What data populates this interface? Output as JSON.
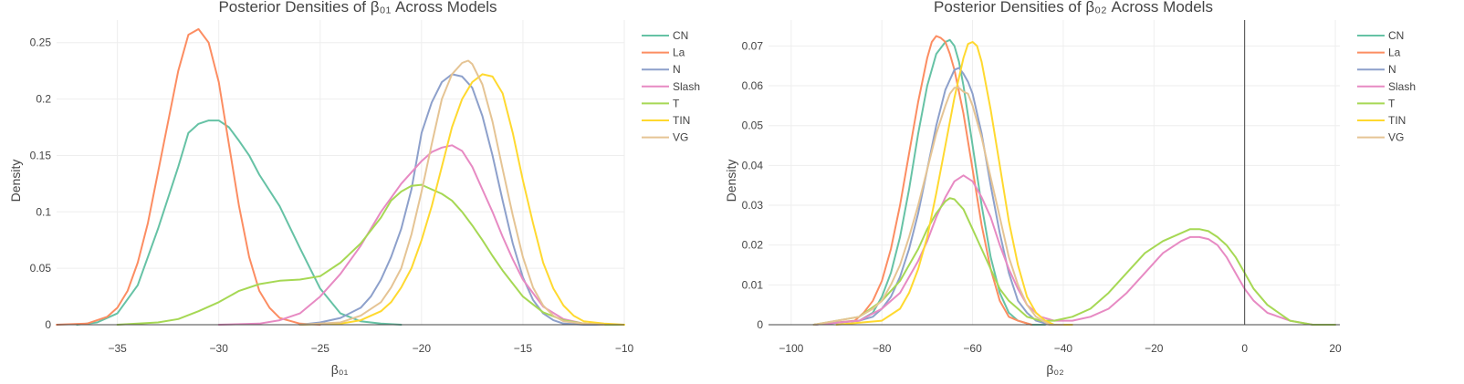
{
  "chart_data": [
    {
      "type": "line",
      "title": "Posterior Densities of β₀₁ Across Models",
      "xlabel": "β₀₁",
      "ylabel": "Density",
      "xlim": [
        -38,
        -10
      ],
      "ylim": [
        0,
        0.27
      ],
      "xticks": [
        -35,
        -30,
        -25,
        -20,
        -15,
        -10
      ],
      "xtick_labels": [
        "−35",
        "−30",
        "−25",
        "−20",
        "−15",
        "−10"
      ],
      "yticks": [
        0,
        0.05,
        0.1,
        0.15,
        0.2,
        0.25
      ],
      "ytick_labels": [
        "0",
        "0.05",
        "0.1",
        "0.15",
        "0.2",
        "0.25"
      ],
      "grid": true,
      "legend_position": "top-right",
      "series": [
        {
          "name": "CN",
          "color": "#66c2a5",
          "x": [
            -37,
            -36,
            -35,
            -34,
            -33,
            -32,
            -31.5,
            -31,
            -30.5,
            -30,
            -29.5,
            -29,
            -28.5,
            -28,
            -27,
            -26,
            -25,
            -24,
            -23,
            -22,
            -21
          ],
          "y": [
            0,
            0.002,
            0.01,
            0.035,
            0.085,
            0.14,
            0.17,
            0.178,
            0.181,
            0.181,
            0.175,
            0.163,
            0.15,
            0.133,
            0.105,
            0.068,
            0.032,
            0.01,
            0.003,
            0.001,
            0
          ]
        },
        {
          "name": "La",
          "color": "#fc8d62",
          "x": [
            -38,
            -36.5,
            -35.5,
            -35,
            -34.5,
            -34,
            -33.5,
            -33,
            -32.5,
            -32,
            -31.5,
            -31.2,
            -31,
            -30.5,
            -30,
            -29.5,
            -29,
            -28.5,
            -28,
            -27.5,
            -27,
            -26,
            -25
          ],
          "y": [
            0,
            0.001,
            0.007,
            0.015,
            0.03,
            0.055,
            0.09,
            0.135,
            0.18,
            0.225,
            0.257,
            0.26,
            0.262,
            0.25,
            0.215,
            0.16,
            0.105,
            0.06,
            0.03,
            0.015,
            0.006,
            0.001,
            0
          ]
        },
        {
          "name": "N",
          "color": "#8da0cb",
          "x": [
            -26,
            -25,
            -24,
            -23,
            -22.5,
            -22,
            -21.5,
            -21,
            -20.5,
            -20,
            -19.5,
            -19,
            -18.5,
            -18,
            -17.5,
            -17,
            -16.5,
            -16,
            -15.5,
            -15,
            -14.5,
            -14,
            -13.5,
            -13,
            -12,
            -11
          ],
          "y": [
            0,
            0.002,
            0.006,
            0.015,
            0.025,
            0.04,
            0.06,
            0.085,
            0.12,
            0.17,
            0.197,
            0.215,
            0.222,
            0.22,
            0.21,
            0.185,
            0.15,
            0.11,
            0.072,
            0.042,
            0.022,
            0.01,
            0.004,
            0.001,
            0,
            0
          ]
        },
        {
          "name": "Slash",
          "color": "#e78ac3",
          "x": [
            -30,
            -28,
            -27,
            -26,
            -25,
            -24,
            -23,
            -22,
            -21,
            -20,
            -19.5,
            -19,
            -18.5,
            -18,
            -17.5,
            -17,
            -16.5,
            -16,
            -15.5,
            -15,
            -14,
            -13,
            -12,
            -11
          ],
          "y": [
            0,
            0.001,
            0.004,
            0.01,
            0.025,
            0.045,
            0.07,
            0.1,
            0.125,
            0.145,
            0.153,
            0.157,
            0.159,
            0.154,
            0.14,
            0.12,
            0.1,
            0.078,
            0.058,
            0.04,
            0.016,
            0.005,
            0.001,
            0
          ]
        },
        {
          "name": "T",
          "color": "#a6d854",
          "x": [
            -35,
            -33,
            -32,
            -31,
            -30,
            -29,
            -28,
            -27,
            -26,
            -25,
            -24,
            -23,
            -22,
            -21.5,
            -21,
            -20.5,
            -20,
            -19.5,
            -19,
            -18.5,
            -18,
            -17.5,
            -17,
            -16.5,
            -16,
            -15,
            -14,
            -13,
            -12,
            -11,
            -10
          ],
          "y": [
            0,
            0.002,
            0.005,
            0.012,
            0.02,
            0.03,
            0.036,
            0.039,
            0.04,
            0.043,
            0.055,
            0.072,
            0.095,
            0.11,
            0.118,
            0.123,
            0.124,
            0.12,
            0.116,
            0.11,
            0.1,
            0.088,
            0.075,
            0.061,
            0.048,
            0.025,
            0.011,
            0.004,
            0.001,
            0,
            0
          ]
        },
        {
          "name": "TIN",
          "color": "#ffd92f",
          "x": [
            -26,
            -24,
            -23,
            -22,
            -21.5,
            -21,
            -20.5,
            -20,
            -19.5,
            -19,
            -18.5,
            -18,
            -17.5,
            -17,
            -16.5,
            -16,
            -15.5,
            -15,
            -14.5,
            -14,
            -13.5,
            -13,
            -12.5,
            -12,
            -11,
            -10
          ],
          "y": [
            0,
            0.001,
            0.004,
            0.012,
            0.02,
            0.033,
            0.05,
            0.075,
            0.105,
            0.14,
            0.175,
            0.2,
            0.215,
            0.222,
            0.22,
            0.205,
            0.17,
            0.128,
            0.09,
            0.055,
            0.032,
            0.017,
            0.008,
            0.003,
            0.001,
            0
          ]
        },
        {
          "name": "VG",
          "color": "#e5c494",
          "x": [
            -26,
            -24,
            -23,
            -22,
            -21.5,
            -21,
            -20.5,
            -20,
            -19.5,
            -19,
            -18.5,
            -18,
            -17.7,
            -17.5,
            -17,
            -16.5,
            -16,
            -15.5,
            -15,
            -14.5,
            -14,
            -13.5,
            -13,
            -12,
            -11
          ],
          "y": [
            0,
            0.002,
            0.008,
            0.02,
            0.033,
            0.05,
            0.08,
            0.118,
            0.16,
            0.2,
            0.222,
            0.232,
            0.234,
            0.231,
            0.213,
            0.18,
            0.138,
            0.097,
            0.06,
            0.033,
            0.017,
            0.008,
            0.003,
            0.001,
            0
          ]
        }
      ]
    },
    {
      "type": "line",
      "title": "Posterior Densities of β₀₂ Across Models",
      "xlabel": "β₀₂",
      "ylabel": "Density",
      "xlim": [
        -105,
        21
      ],
      "ylim": [
        0,
        0.0765
      ],
      "xticks": [
        -100,
        -80,
        -60,
        -40,
        -20,
        0,
        20
      ],
      "xtick_labels": [
        "−100",
        "−80",
        "−60",
        "−40",
        "−20",
        "0",
        "20"
      ],
      "yticks": [
        0,
        0.01,
        0.02,
        0.03,
        0.04,
        0.05,
        0.06,
        0.07
      ],
      "ytick_labels": [
        "0",
        "0.01",
        "0.02",
        "0.03",
        "0.04",
        "0.05",
        "0.06",
        "0.07"
      ],
      "grid": true,
      "zero_line_x": 0,
      "legend_position": "top-right",
      "series": [
        {
          "name": "CN",
          "color": "#66c2a5",
          "x": [
            -95,
            -85,
            -82,
            -80,
            -78,
            -76,
            -74,
            -72,
            -70,
            -68,
            -66,
            -65,
            -64,
            -63,
            -62,
            -60,
            -58,
            -56,
            -54,
            -52,
            -50,
            -47,
            -44
          ],
          "y": [
            0,
            0.001,
            0.003,
            0.007,
            0.013,
            0.022,
            0.034,
            0.048,
            0.06,
            0.068,
            0.071,
            0.0715,
            0.07,
            0.066,
            0.06,
            0.045,
            0.03,
            0.017,
            0.008,
            0.003,
            0.001,
            0,
            0
          ]
        },
        {
          "name": "La",
          "color": "#fc8d62",
          "x": [
            -95,
            -86,
            -84,
            -82,
            -80,
            -78,
            -76,
            -74,
            -72,
            -70,
            -69,
            -68,
            -67,
            -66,
            -65,
            -64,
            -62,
            -60,
            -58,
            -56,
            -54,
            -52,
            -50,
            -47
          ],
          "y": [
            0,
            0.001,
            0.003,
            0.006,
            0.011,
            0.019,
            0.03,
            0.043,
            0.056,
            0.067,
            0.071,
            0.0725,
            0.072,
            0.071,
            0.068,
            0.064,
            0.053,
            0.039,
            0.025,
            0.014,
            0.006,
            0.002,
            0.001,
            0
          ]
        },
        {
          "name": "N",
          "color": "#8da0cb",
          "x": [
            -95,
            -85,
            -82,
            -80,
            -78,
            -76,
            -74,
            -72,
            -70,
            -68,
            -66,
            -64,
            -63,
            -62,
            -61,
            -60,
            -58,
            -56,
            -54,
            -52,
            -50,
            -48,
            -46,
            -43,
            -40
          ],
          "y": [
            0,
            0.001,
            0.002,
            0.004,
            0.007,
            0.012,
            0.019,
            0.028,
            0.039,
            0.05,
            0.059,
            0.064,
            0.0645,
            0.063,
            0.061,
            0.058,
            0.048,
            0.035,
            0.023,
            0.013,
            0.006,
            0.003,
            0.001,
            0,
            0
          ]
        },
        {
          "name": "Slash",
          "color": "#e78ac3",
          "x": [
            -95,
            -85,
            -80,
            -76,
            -72,
            -70,
            -68,
            -66,
            -64,
            -62,
            -60,
            -58,
            -56,
            -54,
            -52,
            -50,
            -48,
            -45,
            -42,
            -38,
            -34,
            -30,
            -26,
            -22,
            -18,
            -14,
            -12,
            -10,
            -8,
            -6,
            -4,
            -2,
            0,
            2,
            5,
            10,
            15,
            20
          ],
          "y": [
            0,
            0.001,
            0.004,
            0.008,
            0.016,
            0.021,
            0.027,
            0.032,
            0.036,
            0.0375,
            0.036,
            0.032,
            0.027,
            0.02,
            0.014,
            0.009,
            0.005,
            0.002,
            0.001,
            0.001,
            0.002,
            0.004,
            0.008,
            0.013,
            0.018,
            0.021,
            0.022,
            0.022,
            0.0215,
            0.02,
            0.017,
            0.013,
            0.009,
            0.006,
            0.003,
            0.001,
            0,
            0
          ]
        },
        {
          "name": "T",
          "color": "#a6d854",
          "x": [
            -95,
            -85,
            -80,
            -76,
            -72,
            -70,
            -68,
            -66,
            -65,
            -64,
            -62,
            -60,
            -58,
            -56,
            -54,
            -52,
            -50,
            -48,
            -45,
            -42,
            -38,
            -34,
            -30,
            -26,
            -22,
            -18,
            -14,
            -12,
            -10,
            -8,
            -6,
            -4,
            -2,
            0,
            2,
            5,
            10,
            15,
            20
          ],
          "y": [
            0,
            0.002,
            0.006,
            0.011,
            0.019,
            0.024,
            0.028,
            0.031,
            0.0318,
            0.0315,
            0.029,
            0.024,
            0.019,
            0.014,
            0.009,
            0.006,
            0.004,
            0.002,
            0.001,
            0.001,
            0.002,
            0.004,
            0.008,
            0.013,
            0.018,
            0.021,
            0.023,
            0.024,
            0.024,
            0.0235,
            0.022,
            0.02,
            0.017,
            0.013,
            0.009,
            0.005,
            0.001,
            0,
            0
          ]
        },
        {
          "name": "TIN",
          "color": "#ffd92f",
          "x": [
            -90,
            -80,
            -76,
            -74,
            -72,
            -70,
            -68,
            -66,
            -64,
            -62,
            -61,
            -60,
            -59,
            -58,
            -56,
            -54,
            -52,
            -50,
            -48,
            -46,
            -44,
            -42,
            -38
          ],
          "y": [
            0,
            0.001,
            0.004,
            0.008,
            0.014,
            0.022,
            0.033,
            0.045,
            0.057,
            0.067,
            0.0705,
            0.071,
            0.07,
            0.066,
            0.054,
            0.04,
            0.026,
            0.015,
            0.007,
            0.003,
            0.001,
            0,
            0
          ]
        },
        {
          "name": "VG",
          "color": "#e5c494",
          "x": [
            -95,
            -85,
            -82,
            -80,
            -78,
            -76,
            -74,
            -72,
            -70,
            -68,
            -66,
            -65,
            -64,
            -63,
            -62,
            -61,
            -60,
            -58,
            -56,
            -54,
            -52,
            -50,
            -48,
            -46,
            -43,
            -40
          ],
          "y": [
            0,
            0.002,
            0.004,
            0.006,
            0.01,
            0.015,
            0.022,
            0.03,
            0.039,
            0.048,
            0.055,
            0.058,
            0.0595,
            0.0595,
            0.0585,
            0.058,
            0.055,
            0.047,
            0.037,
            0.027,
            0.017,
            0.01,
            0.005,
            0.002,
            0,
            0
          ]
        }
      ]
    }
  ]
}
